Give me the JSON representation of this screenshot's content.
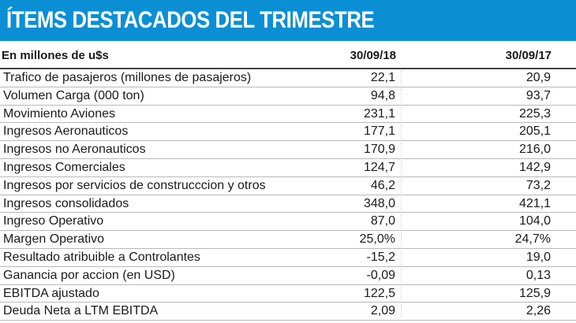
{
  "title": "ÍTEMS DESTACADOS DEL TRIMESTRE",
  "table": {
    "unit_label": "En millones de u$s",
    "columns": [
      "30/09/18",
      "30/09/17"
    ],
    "rows": [
      {
        "label": "Trafico de pasajeros (millones de pasajeros)",
        "v1": "22,1",
        "v2": "20,9"
      },
      {
        "label": "Volumen Carga (000 ton)",
        "v1": "94,8",
        "v2": "93,7"
      },
      {
        "label": "Movimiento Aviones",
        "v1": "231,1",
        "v2": "225,3"
      },
      {
        "label": "Ingresos Aeronauticos",
        "v1": "177,1",
        "v2": "205,1"
      },
      {
        "label": "Ingresos no Aeronauticos",
        "v1": "170,9",
        "v2": "216,0"
      },
      {
        "label": "Ingresos Comerciales",
        "v1": "124,7",
        "v2": "142,9"
      },
      {
        "label": "Ingresos por servicios de construcccion y otros",
        "v1": "46,2",
        "v2": "73,2"
      },
      {
        "label": "Ingresos consolidados",
        "v1": "348,0",
        "v2": "421,1"
      },
      {
        "label": "Ingreso Operativo",
        "v1": "87,0",
        "v2": "104,0"
      },
      {
        "label": "Margen Operativo",
        "v1": "25,0%",
        "v2": "24,7%"
      },
      {
        "label": "Resultado atribuible a Controlantes",
        "v1": "-15,2",
        "v2": "19,0"
      },
      {
        "label": "Ganancia por accion (en USD)",
        "v1": "-0,09",
        "v2": "0,13"
      },
      {
        "label": "EBITDA ajustado",
        "v1": "122,5",
        "v2": "125,9"
      },
      {
        "label": "Deuda Neta a LTM EBITDA",
        "v1": "2,09",
        "v2": "2,26"
      }
    ]
  },
  "colors": {
    "header_bg": "#0b8fd4",
    "header_text": "#ffffff"
  }
}
